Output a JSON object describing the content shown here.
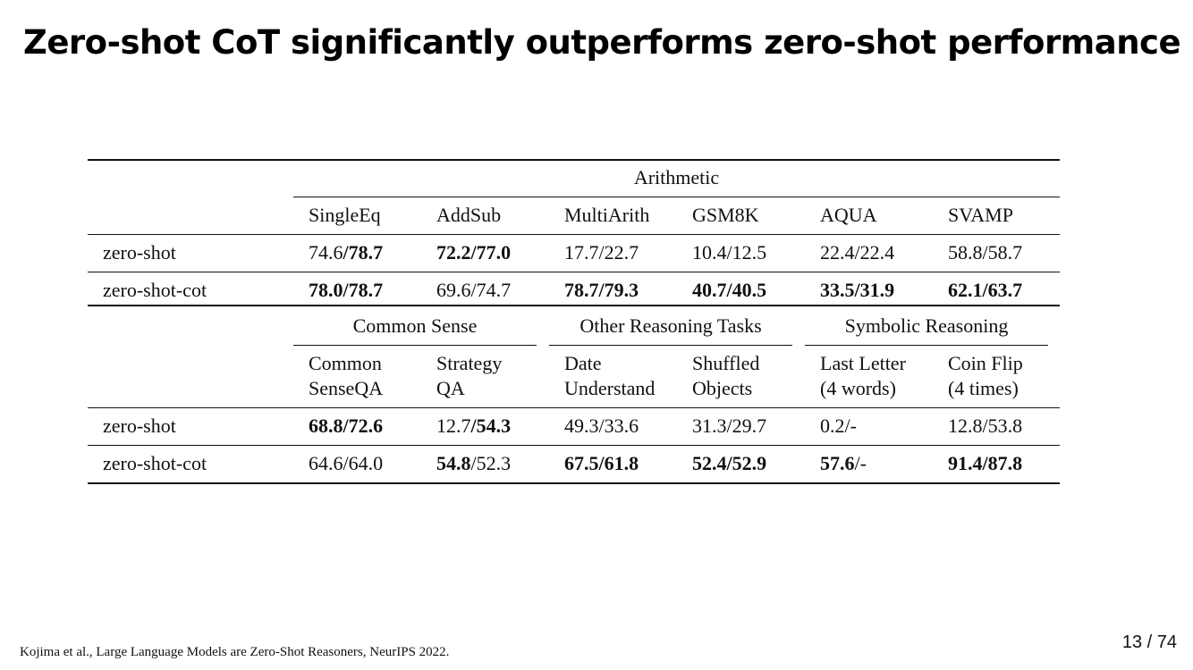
{
  "slide": {
    "title": "Zero-shot CoT significantly outperforms zero-shot performance",
    "footer": "Kojima et al., Large Language Models are Zero-Shot Reasoners, NeurIPS 2022.",
    "page_number": "13 / 74"
  },
  "table1": {
    "group": "Arithmetic",
    "columns": [
      "SingleEq",
      "AddSub",
      "MultiArith",
      "GSM8K",
      "AQUA",
      "SVAMP"
    ],
    "rows": [
      {
        "label": "zero-shot",
        "cells": [
          {
            "a": "74.6",
            "a_bold": false,
            "b": "/78.7",
            "b_bold": true
          },
          {
            "a": "72.2/77.0",
            "a_bold": true,
            "b": "",
            "b_bold": false
          },
          {
            "a": "17.7/22.7",
            "a_bold": false,
            "b": "",
            "b_bold": false
          },
          {
            "a": "10.4/12.5",
            "a_bold": false,
            "b": "",
            "b_bold": false
          },
          {
            "a": "22.4/22.4",
            "a_bold": false,
            "b": "",
            "b_bold": false
          },
          {
            "a": "58.8/58.7",
            "a_bold": false,
            "b": "",
            "b_bold": false
          }
        ]
      },
      {
        "label": "zero-shot-cot",
        "cells": [
          {
            "a": "78.0/78.7",
            "a_bold": true,
            "b": "",
            "b_bold": false
          },
          {
            "a": "69.6/74.7",
            "a_bold": false,
            "b": "",
            "b_bold": false
          },
          {
            "a": "78.7/79.3",
            "a_bold": true,
            "b": "",
            "b_bold": false
          },
          {
            "a": "40.7/40.5",
            "a_bold": true,
            "b": "",
            "b_bold": false
          },
          {
            "a": "33.5/31.9",
            "a_bold": true,
            "b": "",
            "b_bold": false
          },
          {
            "a": "62.1/63.7",
            "a_bold": true,
            "b": "",
            "b_bold": false
          }
        ]
      }
    ]
  },
  "table2": {
    "groups": [
      "Common Sense",
      "Other Reasoning Tasks",
      "Symbolic Reasoning"
    ],
    "columns": [
      {
        "line1": "Common",
        "line2": "SenseQA"
      },
      {
        "line1": "Strategy",
        "line2": "QA"
      },
      {
        "line1": "Date",
        "line2": "Understand"
      },
      {
        "line1": "Shuffled",
        "line2": "Objects"
      },
      {
        "line1": "Last Letter",
        "line2": "(4 words)"
      },
      {
        "line1": "Coin Flip",
        "line2": "(4 times)"
      }
    ],
    "rows": [
      {
        "label": "zero-shot",
        "cells": [
          {
            "a": "68.8/72.6",
            "a_bold": true,
            "b": "",
            "b_bold": false
          },
          {
            "a": "12.7",
            "a_bold": false,
            "b": "/54.3",
            "b_bold": true
          },
          {
            "a": "49.3/33.6",
            "a_bold": false,
            "b": "",
            "b_bold": false
          },
          {
            "a": "31.3/29.7",
            "a_bold": false,
            "b": "",
            "b_bold": false
          },
          {
            "a": "0.2/-",
            "a_bold": false,
            "b": "",
            "b_bold": false
          },
          {
            "a": "12.8/53.8",
            "a_bold": false,
            "b": "",
            "b_bold": false
          }
        ]
      },
      {
        "label": "zero-shot-cot",
        "cells": [
          {
            "a": "64.6/64.0",
            "a_bold": false,
            "b": "",
            "b_bold": false
          },
          {
            "a": "54.8",
            "a_bold": true,
            "b": "/52.3",
            "b_bold": false
          },
          {
            "a": "67.5/61.8",
            "a_bold": true,
            "b": "",
            "b_bold": false
          },
          {
            "a": "52.4/52.9",
            "a_bold": true,
            "b": "",
            "b_bold": false
          },
          {
            "a": "57.6",
            "a_bold": true,
            "b": "/-",
            "b_bold": false
          },
          {
            "a": "91.4/87.8",
            "a_bold": true,
            "b": "",
            "b_bold": false
          }
        ]
      }
    ]
  }
}
